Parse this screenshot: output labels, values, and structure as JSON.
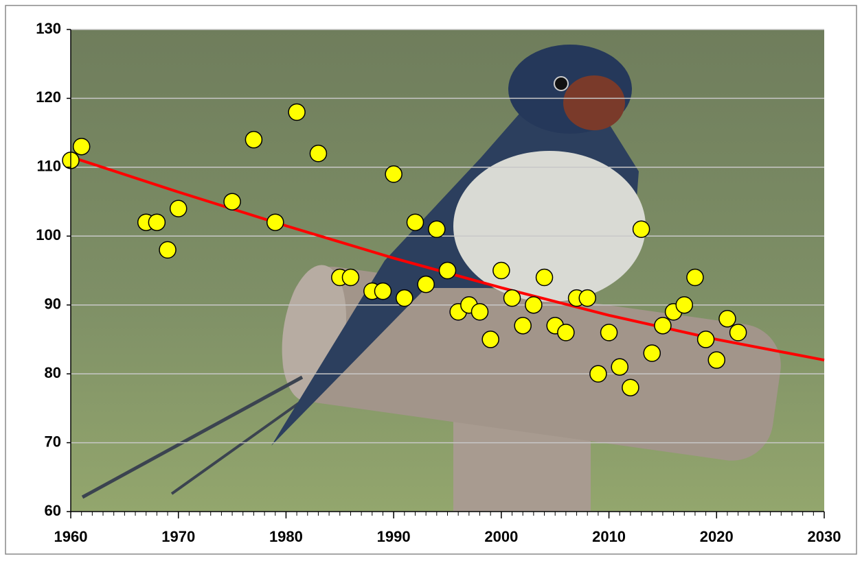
{
  "chart_data": {
    "type": "scatter",
    "x": [
      1960,
      1961,
      1967,
      1968,
      1969,
      1970,
      1975,
      1977,
      1979,
      1981,
      1983,
      1985,
      1986,
      1988,
      1989,
      1990,
      1991,
      1992,
      1993,
      1994,
      1995,
      1996,
      1997,
      1998,
      1999,
      2000,
      2001,
      2002,
      2003,
      2004,
      2005,
      2006,
      2007,
      2008,
      2009,
      2010,
      2011,
      2012,
      2013,
      2014,
      2015,
      2016,
      2017,
      2018,
      2019,
      2020,
      2021,
      2022
    ],
    "values": [
      111,
      113,
      102,
      102,
      98,
      104,
      105,
      114,
      102,
      118,
      112,
      94,
      94,
      92,
      92,
      109,
      91,
      102,
      93,
      101,
      95,
      89,
      90,
      89,
      85,
      95,
      91,
      87,
      90,
      94,
      87,
      86,
      91,
      91,
      80,
      86,
      81,
      78,
      101,
      83,
      87,
      89,
      90,
      94,
      85,
      82,
      88,
      86
    ],
    "color": "#ffff00",
    "trend": {
      "x": [
        1960,
        1970,
        1980,
        1990,
        2000,
        2010,
        2020,
        2030
      ],
      "values": [
        111.5,
        106.4,
        101.5,
        96.8,
        92.5,
        88.5,
        85,
        82
      ],
      "color": "#ff0000"
    },
    "xlim": [
      1960,
      2030
    ],
    "xticks": [
      1960,
      1970,
      1980,
      1990,
      2000,
      2010,
      2020,
      2030
    ],
    "ylim": [
      60,
      130
    ],
    "yticks": [
      60,
      70,
      80,
      90,
      100,
      110,
      120,
      130
    ],
    "grid": true
  }
}
